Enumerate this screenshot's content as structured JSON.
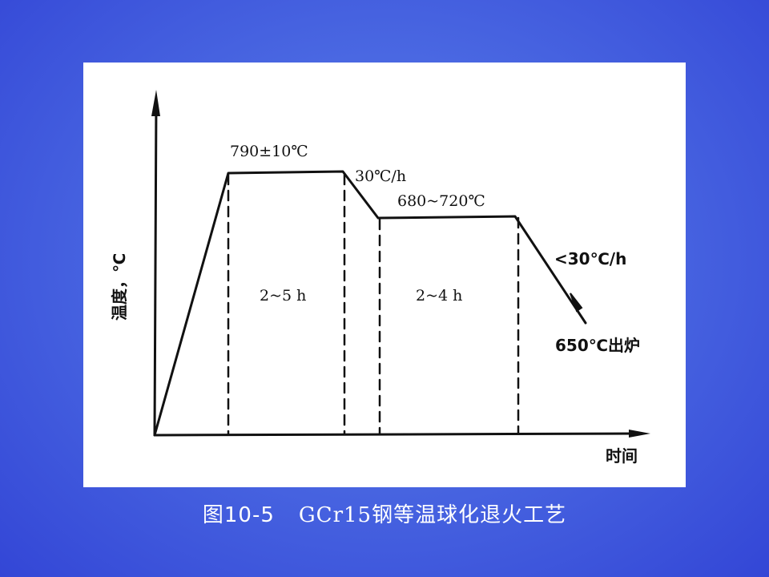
{
  "diagram": {
    "y_axis_label": "温度，℃",
    "x_axis_label": "时间",
    "labels": {
      "austenitize_temp": "790±10℃",
      "cool_rate_1": "30℃/h",
      "isothermal_temp": "680~720℃",
      "cool_rate_2": "<30℃/h",
      "discharge": "650℃出炉",
      "hold_1": "2~5 h",
      "hold_2": "2~4 h"
    },
    "line_color": "#111111"
  },
  "caption": {
    "figure_number": "图10-5",
    "title": "GCr15钢等温球化退火工艺"
  },
  "colors": {
    "background": "#4a68e2",
    "panel": "#ffffff",
    "caption_text": "#ffffff"
  }
}
